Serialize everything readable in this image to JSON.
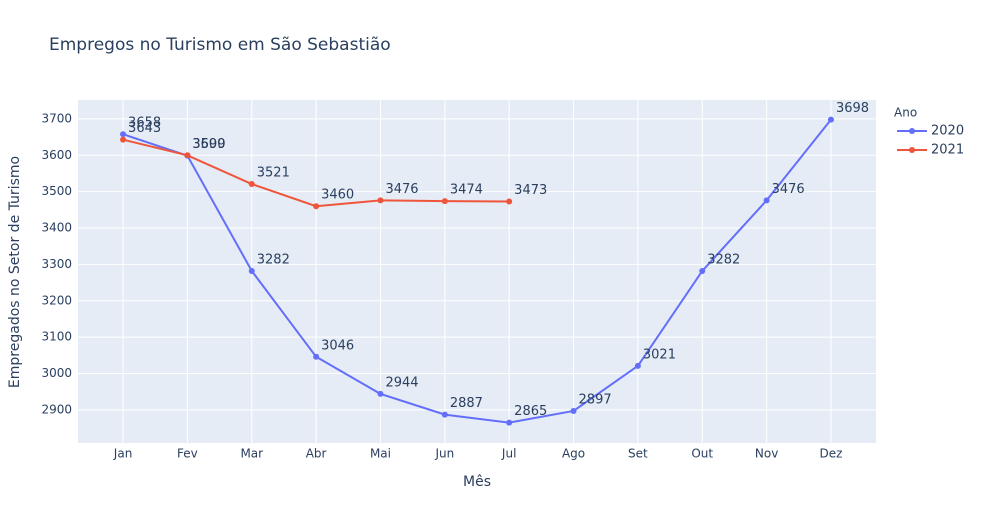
{
  "chart_data": {
    "type": "line",
    "title": "Empregos no Turismo em São Sebastião",
    "x_label": "Mês",
    "y_label": "Empregados no Setor de Turismo",
    "legend_title": "Ano",
    "categories": [
      "Jan",
      "Fev",
      "Mar",
      "Abr",
      "Mai",
      "Jun",
      "Jul",
      "Ago",
      "Set",
      "Out",
      "Nov",
      "Dez"
    ],
    "series": [
      {
        "name": "2020",
        "color": "#636efa",
        "values": [
          3658,
          3599,
          3282,
          3046,
          2944,
          2887,
          2865,
          2897,
          3021,
          3282,
          3476,
          3698
        ]
      },
      {
        "name": "2021",
        "color": "#EF553B",
        "values": [
          3643,
          3600,
          3521,
          3460,
          3476,
          3474,
          3473,
          null,
          null,
          null,
          null,
          null
        ]
      }
    ],
    "ylim": [
      2809,
      3752
    ],
    "yticks": [
      2900,
      3000,
      3100,
      3200,
      3300,
      3400,
      3500,
      3600,
      3700
    ],
    "grid": true,
    "legend": "right"
  }
}
